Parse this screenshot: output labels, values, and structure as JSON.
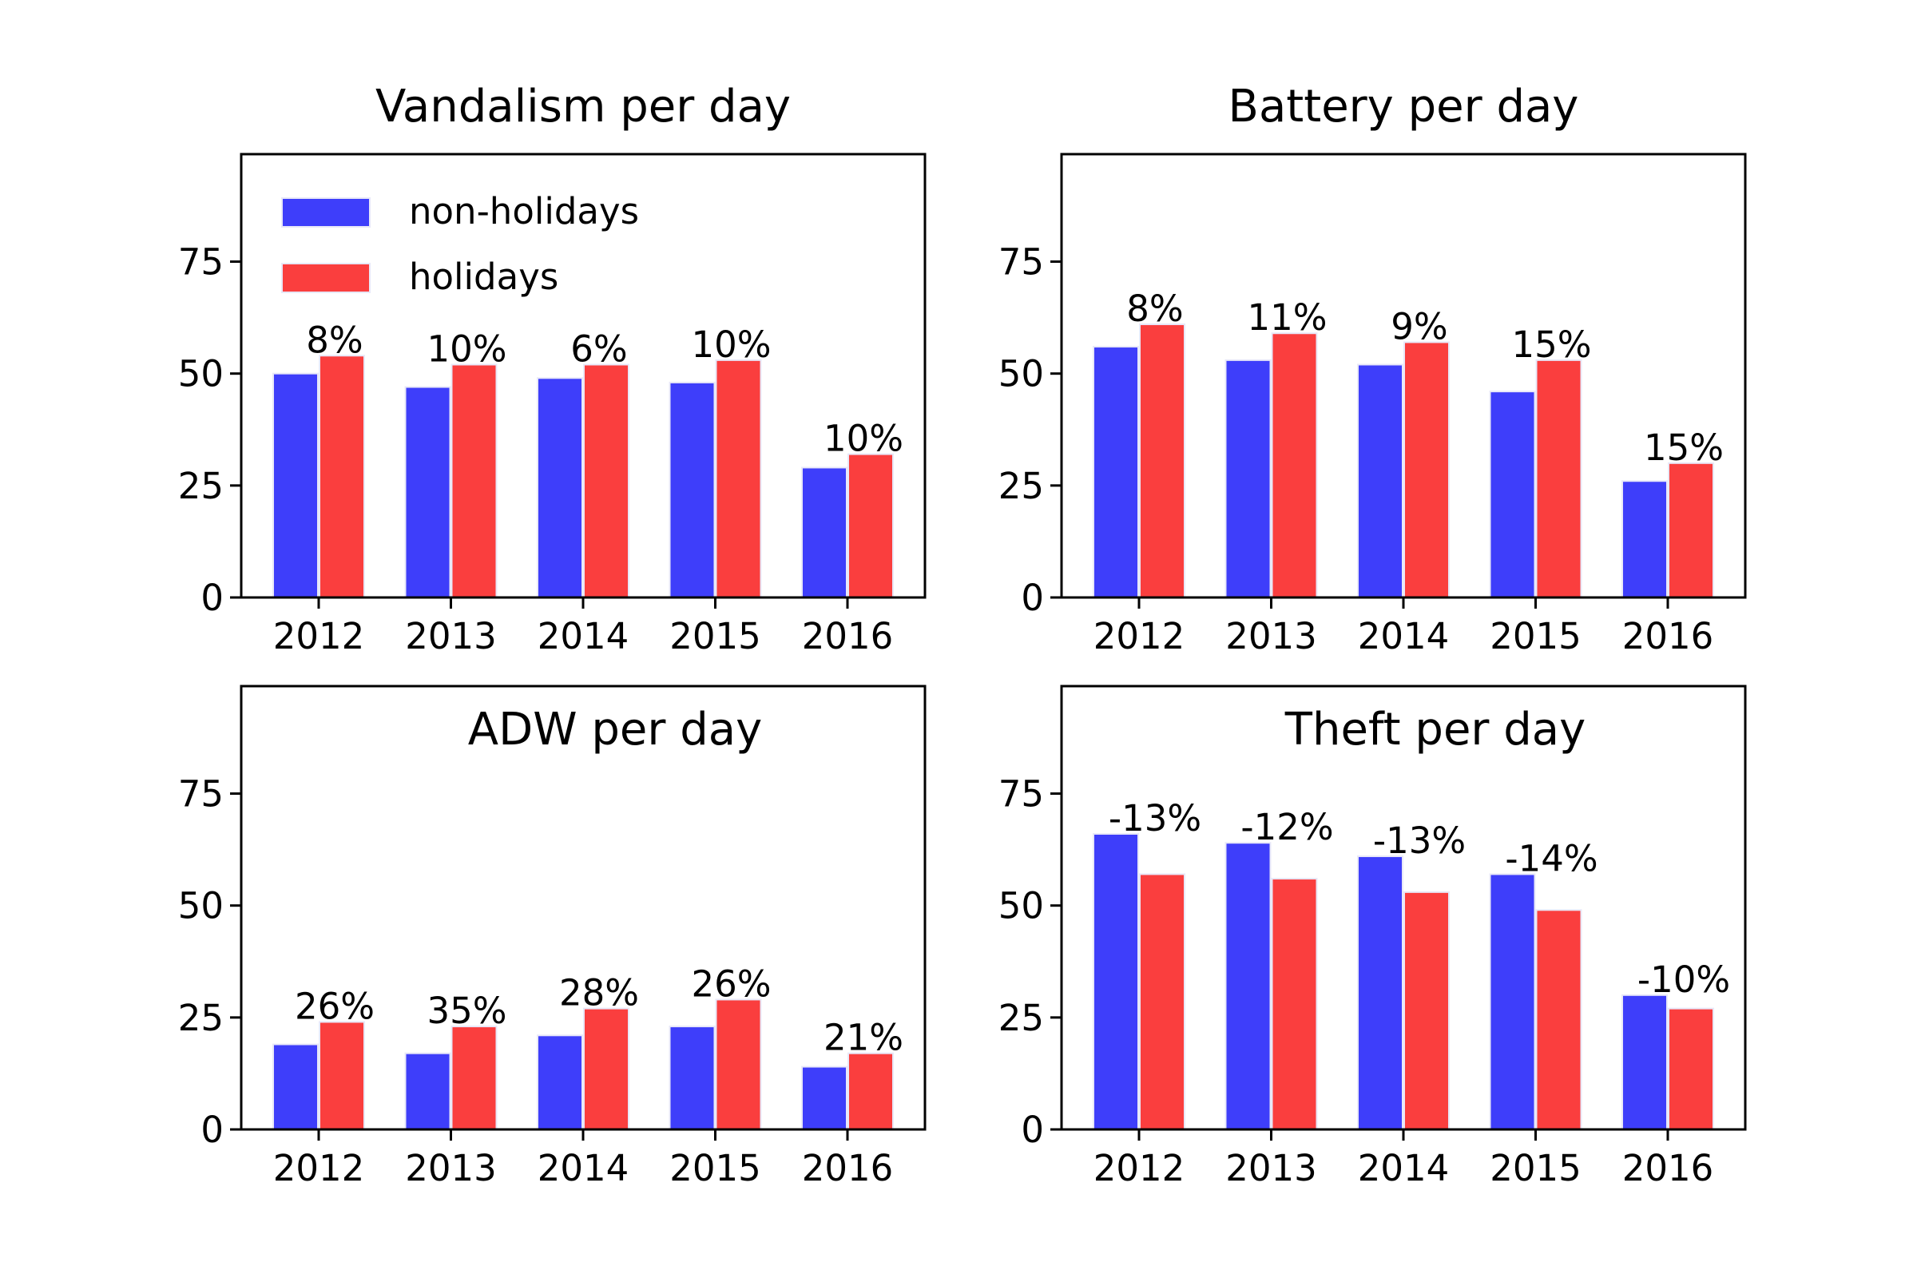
{
  "colors": {
    "non_holidays": "#3e3efa",
    "holidays": "#fa3e3e"
  },
  "legend": {
    "items": [
      {
        "label": "non-holidays",
        "color": "#3e3efa"
      },
      {
        "label": "holidays",
        "color": "#fa3e3e"
      }
    ],
    "placement": "upper-left of first panel"
  },
  "chart_data": [
    {
      "type": "bar",
      "title": "Vandalism per day",
      "categories": [
        "2012",
        "2013",
        "2014",
        "2015",
        "2016"
      ],
      "series": [
        {
          "name": "non-holidays",
          "values": [
            50,
            47,
            49,
            48,
            29
          ]
        },
        {
          "name": "holidays",
          "values": [
            54,
            52,
            52,
            53,
            32
          ]
        }
      ],
      "annotations": [
        "8%",
        "10%",
        "6%",
        "10%",
        "10%"
      ],
      "ylim": [
        0,
        99
      ],
      "yticks": [
        "0",
        "25",
        "50",
        "75"
      ]
    },
    {
      "type": "bar",
      "title": "Battery per day",
      "categories": [
        "2012",
        "2013",
        "2014",
        "2015",
        "2016"
      ],
      "series": [
        {
          "name": "non-holidays",
          "values": [
            56,
            53,
            52,
            46,
            26
          ]
        },
        {
          "name": "holidays",
          "values": [
            61,
            59,
            57,
            53,
            30
          ]
        }
      ],
      "annotations": [
        "8%",
        "11%",
        "9%",
        "15%",
        "15%"
      ],
      "ylim": [
        0,
        99
      ],
      "yticks": [
        "0",
        "25",
        "50",
        "75"
      ]
    },
    {
      "type": "bar",
      "title": "ADW per day",
      "categories": [
        "2012",
        "2013",
        "2014",
        "2015",
        "2016"
      ],
      "series": [
        {
          "name": "non-holidays",
          "values": [
            19,
            17,
            21,
            23,
            14
          ]
        },
        {
          "name": "holidays",
          "values": [
            24,
            23,
            27,
            29,
            17
          ]
        }
      ],
      "annotations": [
        "26%",
        "35%",
        "28%",
        "26%",
        "21%"
      ],
      "ylim": [
        0,
        99
      ],
      "yticks": [
        "0",
        "25",
        "50",
        "75"
      ]
    },
    {
      "type": "bar",
      "title": "Theft per day",
      "categories": [
        "2012",
        "2013",
        "2014",
        "2015",
        "2016"
      ],
      "series": [
        {
          "name": "non-holidays",
          "values": [
            66,
            64,
            61,
            57,
            30
          ]
        },
        {
          "name": "holidays",
          "values": [
            57,
            56,
            53,
            49,
            27
          ]
        }
      ],
      "annotations": [
        "-13%",
        "-12%",
        "-13%",
        "-14%",
        "-10%"
      ],
      "ylim": [
        0,
        99
      ],
      "yticks": [
        "0",
        "25",
        "50",
        "75"
      ]
    }
  ]
}
